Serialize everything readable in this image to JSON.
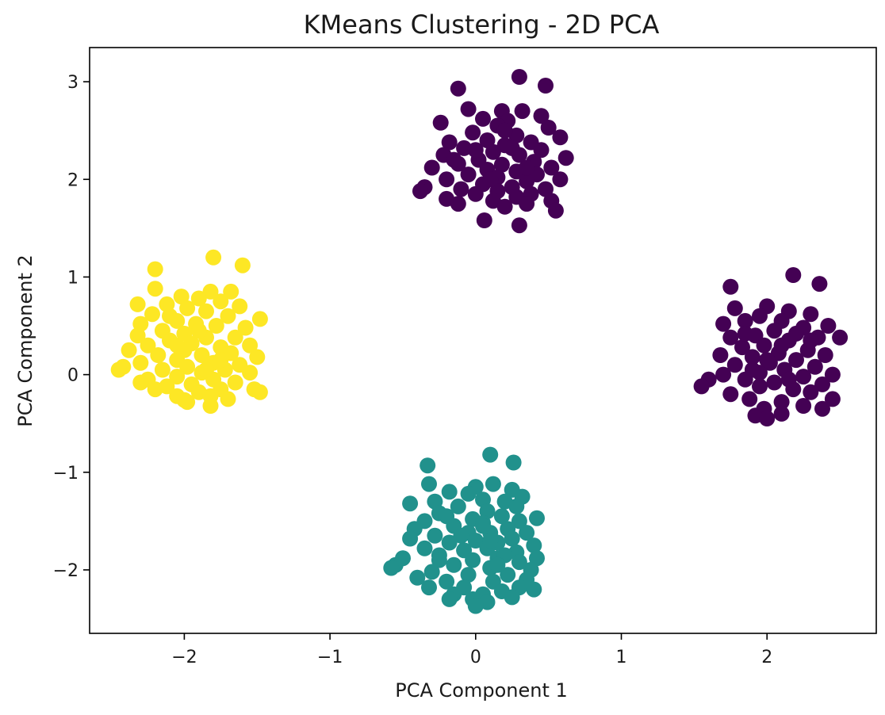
{
  "chart_data": {
    "type": "scatter",
    "title": "KMeans Clustering - 2D PCA",
    "xlabel": "PCA Component 1",
    "ylabel": "PCA Component 2",
    "xlim": [
      -2.65,
      2.75
    ],
    "ylim": [
      -2.65,
      3.35
    ],
    "xticks": [
      -2,
      -1,
      0,
      1,
      2
    ],
    "yticks": [
      -2,
      -1,
      0,
      1,
      2,
      3
    ],
    "xtick_labels": [
      "−2",
      "−1",
      "0",
      "1",
      "2"
    ],
    "ytick_labels": [
      "−2",
      "−1",
      "0",
      "1",
      "2",
      "3"
    ],
    "grid": false,
    "legend": "none",
    "colors": {
      "cluster_0": "#440154",
      "cluster_1": "#21918c",
      "cluster_2": "#fde725"
    },
    "series": [
      {
        "color": "#440154",
        "points": [
          [
            0.3,
            3.05
          ],
          [
            0.48,
            2.96
          ],
          [
            -0.12,
            2.93
          ],
          [
            -0.05,
            2.72
          ],
          [
            0.18,
            2.7
          ],
          [
            0.32,
            2.7
          ],
          [
            0.45,
            2.65
          ],
          [
            0.05,
            2.62
          ],
          [
            0.22,
            2.6
          ],
          [
            -0.24,
            2.58
          ],
          [
            0.15,
            2.55
          ],
          [
            0.5,
            2.53
          ],
          [
            -0.02,
            2.48
          ],
          [
            0.28,
            2.45
          ],
          [
            0.58,
            2.43
          ],
          [
            0.08,
            2.4
          ],
          [
            0.38,
            2.38
          ],
          [
            -0.18,
            2.38
          ],
          [
            0.2,
            2.35
          ],
          [
            -0.08,
            2.32
          ],
          [
            0.45,
            2.3
          ],
          [
            0.12,
            2.28
          ],
          [
            -0.22,
            2.25
          ],
          [
            0.3,
            2.25
          ],
          [
            0.62,
            2.22
          ],
          [
            0.02,
            2.2
          ],
          [
            0.4,
            2.18
          ],
          [
            -0.12,
            2.16
          ],
          [
            0.18,
            2.15
          ],
          [
            0.52,
            2.12
          ],
          [
            -0.3,
            2.12
          ],
          [
            0.08,
            2.1
          ],
          [
            0.28,
            2.08
          ],
          [
            0.42,
            2.05
          ],
          [
            -0.05,
            2.05
          ],
          [
            0.15,
            2.02
          ],
          [
            0.58,
            2.0
          ],
          [
            -0.2,
            2.0
          ],
          [
            0.35,
            1.98
          ],
          [
            0.05,
            1.95
          ],
          [
            0.25,
            1.92
          ],
          [
            -0.35,
            1.92
          ],
          [
            0.48,
            1.9
          ],
          [
            -0.1,
            1.9
          ],
          [
            0.15,
            1.88
          ],
          [
            0.38,
            1.85
          ],
          [
            -0.38,
            1.88
          ],
          [
            0.0,
            1.85
          ],
          [
            0.28,
            1.82
          ],
          [
            -0.2,
            1.8
          ],
          [
            0.52,
            1.78
          ],
          [
            0.12,
            1.78
          ],
          [
            0.35,
            1.75
          ],
          [
            -0.12,
            1.75
          ],
          [
            0.2,
            1.72
          ],
          [
            0.55,
            1.68
          ],
          [
            0.06,
            1.58
          ],
          [
            0.3,
            1.53
          ],
          [
            0.0,
            2.3
          ],
          [
            0.25,
            2.32
          ],
          [
            0.1,
            2.0
          ],
          [
            0.35,
            2.12
          ],
          [
            0.2,
            2.5
          ],
          [
            -0.15,
            2.2
          ],
          [
            1.75,
            0.9
          ],
          [
            2.18,
            1.02
          ],
          [
            2.36,
            0.93
          ],
          [
            2.0,
            0.7
          ],
          [
            2.15,
            0.65
          ],
          [
            1.78,
            0.68
          ],
          [
            2.3,
            0.62
          ],
          [
            1.95,
            0.6
          ],
          [
            2.1,
            0.55
          ],
          [
            1.85,
            0.55
          ],
          [
            2.42,
            0.5
          ],
          [
            1.7,
            0.52
          ],
          [
            2.25,
            0.48
          ],
          [
            2.05,
            0.45
          ],
          [
            1.92,
            0.4
          ],
          [
            2.35,
            0.38
          ],
          [
            1.75,
            0.38
          ],
          [
            2.5,
            0.38
          ],
          [
            2.15,
            0.35
          ],
          [
            1.98,
            0.3
          ],
          [
            1.83,
            0.28
          ],
          [
            2.28,
            0.25
          ],
          [
            2.08,
            0.22
          ],
          [
            1.68,
            0.2
          ],
          [
            2.4,
            0.2
          ],
          [
            1.9,
            0.18
          ],
          [
            2.2,
            0.15
          ],
          [
            2.02,
            0.12
          ],
          [
            1.78,
            0.1
          ],
          [
            2.33,
            0.08
          ],
          [
            2.12,
            0.05
          ],
          [
            1.95,
            0.02
          ],
          [
            2.45,
            0.0
          ],
          [
            1.7,
            0.0
          ],
          [
            2.25,
            -0.02
          ],
          [
            1.85,
            -0.05
          ],
          [
            2.05,
            -0.08
          ],
          [
            2.38,
            -0.1
          ],
          [
            1.6,
            -0.05
          ],
          [
            1.95,
            -0.12
          ],
          [
            2.18,
            -0.15
          ],
          [
            1.55,
            -0.12
          ],
          [
            2.3,
            -0.18
          ],
          [
            1.75,
            -0.2
          ],
          [
            2.45,
            -0.25
          ],
          [
            1.88,
            -0.25
          ],
          [
            2.1,
            -0.28
          ],
          [
            2.25,
            -0.32
          ],
          [
            1.98,
            -0.35
          ],
          [
            2.38,
            -0.35
          ],
          [
            1.92,
            -0.42
          ],
          [
            2.1,
            -0.4
          ],
          [
            2.0,
            -0.45
          ],
          [
            2.2,
            0.42
          ],
          [
            1.85,
            0.42
          ],
          [
            2.0,
            0.15
          ],
          [
            2.15,
            -0.05
          ],
          [
            1.9,
            0.05
          ],
          [
            2.3,
            0.35
          ],
          [
            2.1,
            0.3
          ]
        ]
      },
      {
        "color": "#21918c",
        "points": [
          [
            0.1,
            -0.82
          ],
          [
            0.26,
            -0.9
          ],
          [
            -0.33,
            -0.93
          ],
          [
            -0.32,
            -1.12
          ],
          [
            0.0,
            -1.15
          ],
          [
            0.12,
            -1.12
          ],
          [
            0.25,
            -1.18
          ],
          [
            -0.18,
            -1.2
          ],
          [
            -0.05,
            -1.22
          ],
          [
            0.32,
            -1.25
          ],
          [
            0.05,
            -1.28
          ],
          [
            -0.28,
            -1.3
          ],
          [
            0.2,
            -1.3
          ],
          [
            -0.45,
            -1.32
          ],
          [
            0.28,
            -1.35
          ],
          [
            -0.12,
            -1.35
          ],
          [
            0.08,
            -1.4
          ],
          [
            -0.25,
            -1.42
          ],
          [
            0.42,
            -1.47
          ],
          [
            0.18,
            -1.45
          ],
          [
            -0.02,
            -1.48
          ],
          [
            -0.35,
            -1.5
          ],
          [
            0.3,
            -1.5
          ],
          [
            0.05,
            -1.52
          ],
          [
            -0.15,
            -1.55
          ],
          [
            -0.42,
            -1.58
          ],
          [
            0.22,
            -1.58
          ],
          [
            0.1,
            -1.62
          ],
          [
            -0.05,
            -1.62
          ],
          [
            0.35,
            -1.62
          ],
          [
            -0.28,
            -1.65
          ],
          [
            0.25,
            -1.68
          ],
          [
            -0.45,
            -1.68
          ],
          [
            0.0,
            -1.7
          ],
          [
            0.15,
            -1.72
          ],
          [
            -0.18,
            -1.72
          ],
          [
            0.4,
            -1.75
          ],
          [
            -0.35,
            -1.78
          ],
          [
            0.08,
            -1.78
          ],
          [
            -0.08,
            -1.8
          ],
          [
            0.28,
            -1.82
          ],
          [
            -0.25,
            -1.85
          ],
          [
            0.42,
            -1.88
          ],
          [
            0.15,
            -1.88
          ],
          [
            -0.5,
            -1.88
          ],
          [
            -0.02,
            -1.9
          ],
          [
            0.3,
            -1.92
          ],
          [
            -0.55,
            -1.95
          ],
          [
            -0.15,
            -1.95
          ],
          [
            0.1,
            -1.98
          ],
          [
            0.38,
            -2.0
          ],
          [
            -0.58,
            -1.98
          ],
          [
            -0.3,
            -2.02
          ],
          [
            0.22,
            -2.05
          ],
          [
            -0.05,
            -2.05
          ],
          [
            0.35,
            -2.1
          ],
          [
            -0.4,
            -2.08
          ],
          [
            0.12,
            -2.12
          ],
          [
            -0.2,
            -2.12
          ],
          [
            0.3,
            -2.18
          ],
          [
            -0.08,
            -2.18
          ],
          [
            0.4,
            -2.2
          ],
          [
            -0.32,
            -2.18
          ],
          [
            0.18,
            -2.22
          ],
          [
            0.05,
            -2.25
          ],
          [
            -0.15,
            -2.25
          ],
          [
            0.25,
            -2.28
          ],
          [
            -0.02,
            -2.3
          ],
          [
            -0.18,
            -2.3
          ],
          [
            0.08,
            -2.33
          ],
          [
            0.0,
            -2.37
          ],
          [
            0.05,
            -1.55
          ],
          [
            -0.1,
            -1.65
          ],
          [
            0.2,
            -1.85
          ],
          [
            -0.2,
            -1.45
          ],
          [
            0.15,
            -1.95
          ],
          [
            -0.25,
            -1.9
          ],
          [
            0.1,
            -1.7
          ]
        ]
      },
      {
        "color": "#fde725",
        "points": [
          [
            -1.8,
            1.2
          ],
          [
            -1.6,
            1.12
          ],
          [
            -2.2,
            1.08
          ],
          [
            -2.2,
            0.88
          ],
          [
            -1.82,
            0.85
          ],
          [
            -1.68,
            0.85
          ],
          [
            -2.02,
            0.8
          ],
          [
            -1.9,
            0.78
          ],
          [
            -1.75,
            0.75
          ],
          [
            -2.32,
            0.72
          ],
          [
            -2.12,
            0.72
          ],
          [
            -1.62,
            0.7
          ],
          [
            -1.98,
            0.68
          ],
          [
            -1.85,
            0.65
          ],
          [
            -2.22,
            0.62
          ],
          [
            -1.7,
            0.6
          ],
          [
            -1.48,
            0.57
          ],
          [
            -2.05,
            0.55
          ],
          [
            -1.92,
            0.52
          ],
          [
            -2.3,
            0.52
          ],
          [
            -1.78,
            0.5
          ],
          [
            -1.58,
            0.48
          ],
          [
            -2.15,
            0.45
          ],
          [
            -2.0,
            0.42
          ],
          [
            -2.32,
            0.4
          ],
          [
            -1.65,
            0.38
          ],
          [
            -1.85,
            0.38
          ],
          [
            -2.1,
            0.35
          ],
          [
            -1.95,
            0.32
          ],
          [
            -2.25,
            0.3
          ],
          [
            -1.55,
            0.3
          ],
          [
            -1.75,
            0.28
          ],
          [
            -2.0,
            0.25
          ],
          [
            -2.38,
            0.25
          ],
          [
            -1.68,
            0.22
          ],
          [
            -1.88,
            0.2
          ],
          [
            -2.18,
            0.2
          ],
          [
            -1.5,
            0.18
          ],
          [
            -2.05,
            0.15
          ],
          [
            -1.8,
            0.12
          ],
          [
            -2.3,
            0.12
          ],
          [
            -1.62,
            0.1
          ],
          [
            -1.98,
            0.08
          ],
          [
            -2.42,
            0.08
          ],
          [
            -2.15,
            0.05
          ],
          [
            -1.72,
            0.05
          ],
          [
            -1.88,
            0.02
          ],
          [
            -2.45,
            0.05
          ],
          [
            -1.55,
            0.02
          ],
          [
            -2.05,
            -0.02
          ],
          [
            -1.8,
            -0.05
          ],
          [
            -2.25,
            -0.05
          ],
          [
            -1.65,
            -0.08
          ],
          [
            -1.95,
            -0.1
          ],
          [
            -2.3,
            -0.08
          ],
          [
            -2.12,
            -0.12
          ],
          [
            -1.52,
            -0.15
          ],
          [
            -1.75,
            -0.15
          ],
          [
            -1.9,
            -0.18
          ],
          [
            -2.2,
            -0.15
          ],
          [
            -1.48,
            -0.18
          ],
          [
            -2.05,
            -0.22
          ],
          [
            -1.82,
            -0.22
          ],
          [
            -1.98,
            -0.28
          ],
          [
            -1.7,
            -0.25
          ],
          [
            -1.82,
            -0.32
          ],
          [
            -2.0,
            -0.26
          ],
          [
            -1.9,
            0.45
          ],
          [
            -2.05,
            0.3
          ],
          [
            -1.75,
            0.15
          ],
          [
            -2.1,
            0.6
          ],
          [
            -1.85,
            0.05
          ]
        ]
      }
    ]
  }
}
